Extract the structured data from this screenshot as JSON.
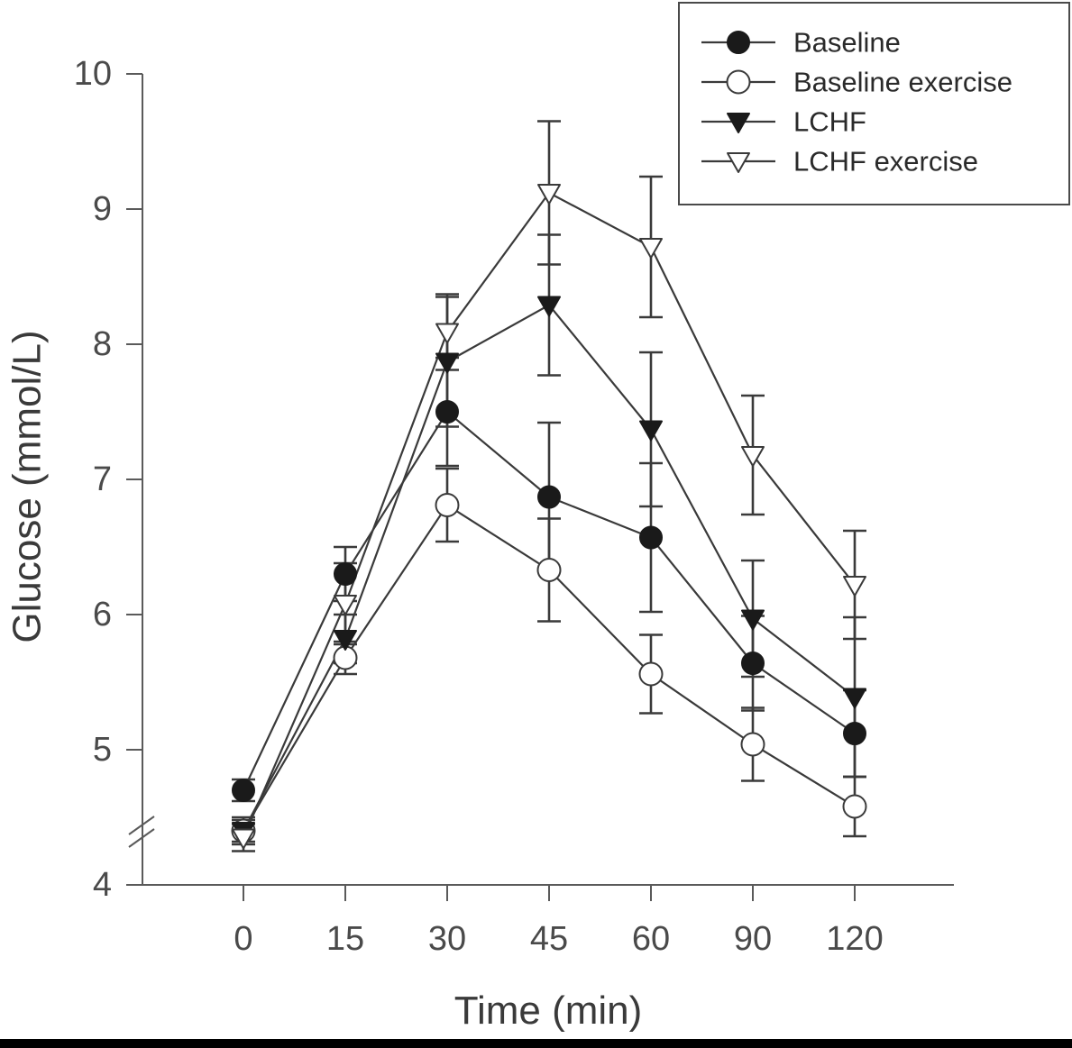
{
  "chart_data": {
    "type": "line",
    "xlabel": "Time (min)",
    "ylabel": "Glucose (mmol/L)",
    "categories": [
      "0",
      "15",
      "30",
      "45",
      "60",
      "90",
      "120"
    ],
    "ylim": [
      4,
      10
    ],
    "yticks": [
      "4",
      "5",
      "6",
      "7",
      "8",
      "9",
      "10"
    ],
    "axis_break": true,
    "legend_position": "top-right",
    "error_bars": true,
    "series": [
      {
        "name": "Baseline",
        "marker": "circle-filled",
        "values": [
          4.7,
          6.3,
          7.5,
          6.87,
          6.57,
          5.64,
          5.12
        ],
        "errors": [
          0.08,
          0.2,
          0.4,
          0.55,
          0.55,
          0.35,
          0.32
        ]
      },
      {
        "name": "Baseline exercise",
        "marker": "circle-open",
        "values": [
          4.4,
          5.68,
          6.81,
          6.33,
          5.56,
          5.04,
          4.58
        ],
        "errors": [
          0.1,
          0.12,
          0.27,
          0.38,
          0.29,
          0.27,
          0.22
        ]
      },
      {
        "name": "LCHF",
        "marker": "triangle-down-filled",
        "values": [
          4.4,
          5.82,
          7.87,
          8.29,
          7.37,
          5.97,
          5.39
        ],
        "errors": [
          0.08,
          0.18,
          0.48,
          0.52,
          0.57,
          0.43,
          0.59
        ]
      },
      {
        "name": "LCHF exercise",
        "marker": "triangle-down-open",
        "values": [
          4.35,
          6.08,
          8.09,
          9.12,
          8.72,
          7.18,
          6.22
        ],
        "errors": [
          0.1,
          0.3,
          0.28,
          0.53,
          0.52,
          0.44,
          0.4
        ]
      }
    ]
  }
}
